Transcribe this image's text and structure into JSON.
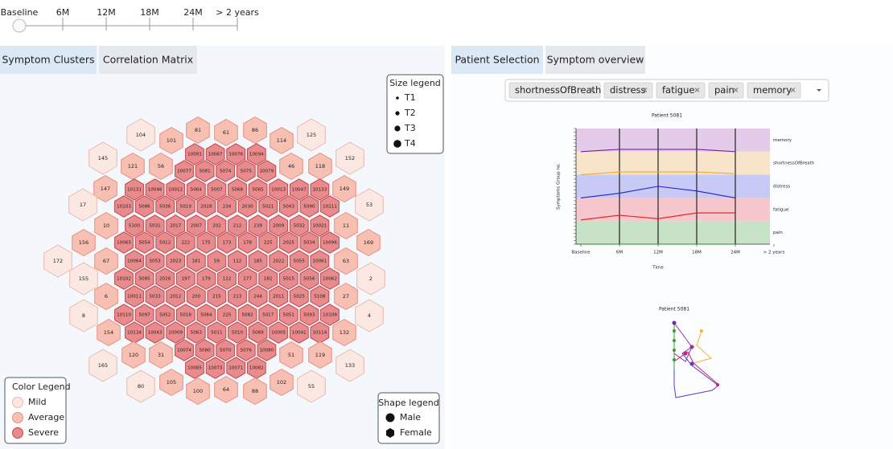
{
  "timeline": {
    "labels": [
      "Baseline",
      "6M",
      "12M",
      "18M",
      "24M",
      "> 2 years"
    ]
  },
  "left_tabs": [
    "Symptom Clusters",
    "Correlation Matrix"
  ],
  "right_tabs": [
    "Patient Selection",
    "Symptom overview"
  ],
  "size_legend": {
    "title": "Size legend",
    "items": [
      "T1",
      "T2",
      "T3",
      "T4"
    ]
  },
  "color_legend": {
    "title": "Color Legend",
    "items": [
      {
        "label": "Mild",
        "color": "#fbe8e2"
      },
      {
        "label": "Average",
        "color": "#f8c0b3"
      },
      {
        "label": "Severe",
        "color": "#e98a8c"
      }
    ]
  },
  "shape_legend": {
    "title": "Shape legend",
    "items": [
      "Male",
      "Female"
    ]
  },
  "hexes": [
    {
      "label": "104",
      "color": "#fbe8e2"
    },
    {
      "label": "101",
      "color": "#f8c0b3"
    },
    {
      "label": "81",
      "color": "#f8c0b3"
    },
    {
      "label": "61",
      "color": "#f8c0b3"
    },
    {
      "label": "86",
      "color": "#f8c0b3"
    },
    {
      "label": "114",
      "color": "#f8c0b3"
    },
    {
      "label": "125",
      "color": "#fbe8e2"
    },
    {
      "label": "10091",
      "color": "#e98a8c"
    },
    {
      "label": "10067",
      "color": "#e98a8c"
    },
    {
      "label": "10076",
      "color": "#e98a8c"
    },
    {
      "label": "10094",
      "color": "#e98a8c"
    },
    {
      "label": "145",
      "color": "#fbe8e2"
    },
    {
      "label": "152",
      "color": "#fbe8e2"
    },
    {
      "label": "121",
      "color": "#f8c0b3"
    },
    {
      "label": "56",
      "color": "#f8c0b3"
    },
    {
      "label": "46",
      "color": "#f8c0b3"
    },
    {
      "label": "118",
      "color": "#f8c0b3"
    },
    {
      "label": "10077",
      "color": "#e98a8c"
    },
    {
      "label": "5081",
      "color": "#e98a8c"
    },
    {
      "label": "5074",
      "color": "#e98a8c"
    },
    {
      "label": "5075",
      "color": "#e98a8c"
    },
    {
      "label": "10079",
      "color": "#e98a8c"
    },
    {
      "label": "147",
      "color": "#f8c0b3"
    },
    {
      "label": "10131",
      "color": "#e98a8c"
    },
    {
      "label": "10046",
      "color": "#e98a8c"
    },
    {
      "label": "10012",
      "color": "#e98a8c"
    },
    {
      "label": "5064",
      "color": "#e98a8c"
    },
    {
      "label": "5007",
      "color": "#e98a8c"
    },
    {
      "label": "5068",
      "color": "#e98a8c"
    },
    {
      "label": "5065",
      "color": "#e98a8c"
    },
    {
      "label": "10013",
      "color": "#e98a8c"
    },
    {
      "label": "10047",
      "color": "#e98a8c"
    },
    {
      "label": "10133",
      "color": "#e98a8c"
    },
    {
      "label": "149",
      "color": "#f8c0b3"
    },
    {
      "label": "17",
      "color": "#fbe8e2"
    },
    {
      "label": "53",
      "color": "#fbe8e2"
    },
    {
      "label": "10103",
      "color": "#e98a8c"
    },
    {
      "label": "5086",
      "color": "#e98a8c"
    },
    {
      "label": "5036",
      "color": "#e98a8c"
    },
    {
      "label": "5019",
      "color": "#e98a8c"
    },
    {
      "label": "2028",
      "color": "#e98a8c"
    },
    {
      "label": "234",
      "color": "#e98a8c"
    },
    {
      "label": "2030",
      "color": "#e98a8c"
    },
    {
      "label": "5021",
      "color": "#e98a8c"
    },
    {
      "label": "5043",
      "color": "#e98a8c"
    },
    {
      "label": "5090",
      "color": "#e98a8c"
    },
    {
      "label": "10111",
      "color": "#e98a8c"
    },
    {
      "label": "10",
      "color": "#f8c0b3"
    },
    {
      "label": "5100",
      "color": "#e98a8c"
    },
    {
      "label": "5031",
      "color": "#e98a8c"
    },
    {
      "label": "2017",
      "color": "#e98a8c"
    },
    {
      "label": "2007",
      "color": "#e98a8c"
    },
    {
      "label": "202",
      "color": "#e98a8c"
    },
    {
      "label": "212",
      "color": "#e98a8c"
    },
    {
      "label": "239",
      "color": "#e98a8c"
    },
    {
      "label": "2009",
      "color": "#e98a8c"
    },
    {
      "label": "5032",
      "color": "#e98a8c"
    },
    {
      "label": "10021",
      "color": "#e98a8c"
    },
    {
      "label": "11",
      "color": "#f8c0b3"
    },
    {
      "label": "156",
      "color": "#f8c0b3"
    },
    {
      "label": "10065",
      "color": "#e98a8c"
    },
    {
      "label": "5054",
      "color": "#e98a8c"
    },
    {
      "label": "5012",
      "color": "#e98a8c"
    },
    {
      "label": "222",
      "color": "#e98a8c"
    },
    {
      "label": "175",
      "color": "#e98a8c"
    },
    {
      "label": "173",
      "color": "#e98a8c"
    },
    {
      "label": "178",
      "color": "#e98a8c"
    },
    {
      "label": "225",
      "color": "#e98a8c"
    },
    {
      "label": "2025",
      "color": "#e98a8c"
    },
    {
      "label": "5034",
      "color": "#e98a8c"
    },
    {
      "label": "10096",
      "color": "#e98a8c"
    },
    {
      "label": "169",
      "color": "#f8c0b3"
    },
    {
      "label": "172",
      "color": "#fbe8e2"
    },
    {
      "label": "67",
      "color": "#f8c0b3"
    },
    {
      "label": "10064",
      "color": "#e98a8c"
    },
    {
      "label": "5053",
      "color": "#e98a8c"
    },
    {
      "label": "2023",
      "color": "#e98a8c"
    },
    {
      "label": "181",
      "color": "#e98a8c"
    },
    {
      "label": "59",
      "color": "#e98a8c"
    },
    {
      "label": "112",
      "color": "#e98a8c"
    },
    {
      "label": "185",
      "color": "#e98a8c"
    },
    {
      "label": "2022",
      "color": "#e98a8c"
    },
    {
      "label": "5055",
      "color": "#e98a8c"
    },
    {
      "label": "10061",
      "color": "#e98a8c"
    },
    {
      "label": "63",
      "color": "#f8c0b3"
    },
    {
      "label": "155",
      "color": "#fbe8e2"
    },
    {
      "label": "10102",
      "color": "#e98a8c"
    },
    {
      "label": "5085",
      "color": "#e98a8c"
    },
    {
      "label": "2026",
      "color": "#e98a8c"
    },
    {
      "label": "197",
      "color": "#e98a8c"
    },
    {
      "label": "179",
      "color": "#e98a8c"
    },
    {
      "label": "122",
      "color": "#e98a8c"
    },
    {
      "label": "177",
      "color": "#e98a8c"
    },
    {
      "label": "182",
      "color": "#e98a8c"
    },
    {
      "label": "5015",
      "color": "#e98a8c"
    },
    {
      "label": "5056",
      "color": "#e98a8c"
    },
    {
      "label": "10062",
      "color": "#e98a8c"
    },
    {
      "label": "2",
      "color": "#fbe8e2"
    },
    {
      "label": "6",
      "color": "#f8c0b3"
    },
    {
      "label": "10011",
      "color": "#e98a8c"
    },
    {
      "label": "5033",
      "color": "#e98a8c"
    },
    {
      "label": "2012",
      "color": "#e98a8c"
    },
    {
      "label": "200",
      "color": "#e98a8c"
    },
    {
      "label": "215",
      "color": "#e98a8c"
    },
    {
      "label": "213",
      "color": "#e98a8c"
    },
    {
      "label": "244",
      "color": "#e98a8c"
    },
    {
      "label": "2011",
      "color": "#e98a8c"
    },
    {
      "label": "5025",
      "color": "#e98a8c"
    },
    {
      "label": "5108",
      "color": "#e98a8c"
    },
    {
      "label": "27",
      "color": "#f8c0b3"
    },
    {
      "label": "8",
      "color": "#fbe8e2"
    },
    {
      "label": "4",
      "color": "#fbe8e2"
    },
    {
      "label": "10110",
      "color": "#e98a8c"
    },
    {
      "label": "5097",
      "color": "#e98a8c"
    },
    {
      "label": "5052",
      "color": "#e98a8c"
    },
    {
      "label": "5018",
      "color": "#e98a8c"
    },
    {
      "label": "5084",
      "color": "#e98a8c"
    },
    {
      "label": "225",
      "color": "#e98a8c"
    },
    {
      "label": "5082",
      "color": "#e98a8c"
    },
    {
      "label": "5017",
      "color": "#e98a8c"
    },
    {
      "label": "5051",
      "color": "#e98a8c"
    },
    {
      "label": "5093",
      "color": "#e98a8c"
    },
    {
      "label": "10108",
      "color": "#e98a8c"
    },
    {
      "label": "154",
      "color": "#f8c0b3"
    },
    {
      "label": "10134",
      "color": "#e98a8c"
    },
    {
      "label": "10043",
      "color": "#e98a8c"
    },
    {
      "label": "10009",
      "color": "#e98a8c"
    },
    {
      "label": "5063",
      "color": "#e98a8c"
    },
    {
      "label": "5011",
      "color": "#e98a8c"
    },
    {
      "label": "5010",
      "color": "#e98a8c"
    },
    {
      "label": "5069",
      "color": "#e98a8c"
    },
    {
      "label": "10005",
      "color": "#e98a8c"
    },
    {
      "label": "10041",
      "color": "#e98a8c"
    },
    {
      "label": "10114",
      "color": "#e98a8c"
    },
    {
      "label": "132",
      "color": "#f8c0b3"
    },
    {
      "label": "10074",
      "color": "#e98a8c"
    },
    {
      "label": "5080",
      "color": "#e98a8c"
    },
    {
      "label": "5070",
      "color": "#e98a8c"
    },
    {
      "label": "5076",
      "color": "#e98a8c"
    },
    {
      "label": "10080",
      "color": "#e98a8c"
    },
    {
      "label": "120",
      "color": "#f8c0b3"
    },
    {
      "label": "31",
      "color": "#f8c0b3"
    },
    {
      "label": "51",
      "color": "#f8c0b3"
    },
    {
      "label": "119",
      "color": "#f8c0b3"
    },
    {
      "label": "165",
      "color": "#fbe8e2"
    },
    {
      "label": "133",
      "color": "#fbe8e2"
    },
    {
      "label": "10085",
      "color": "#e98a8c"
    },
    {
      "label": "10073",
      "color": "#e98a8c"
    },
    {
      "label": "10071",
      "color": "#e98a8c"
    },
    {
      "label": "10082",
      "color": "#e98a8c"
    },
    {
      "label": "80",
      "color": "#fbe8e2"
    },
    {
      "label": "105",
      "color": "#f8c0b3"
    },
    {
      "label": "102",
      "color": "#f8c0b3"
    },
    {
      "label": "55",
      "color": "#fbe8e2"
    },
    {
      "label": "100",
      "color": "#f8c0b3"
    },
    {
      "label": "64",
      "color": "#f8c0b3"
    },
    {
      "label": "88",
      "color": "#f8c0b3"
    }
  ],
  "selector": {
    "chips": [
      "shortnessOfBreath",
      "distress",
      "fatigue",
      "pain",
      "memory"
    ]
  },
  "chart_data": {
    "type": "line",
    "title": "Patient 5081",
    "y_label": "Symptoms Group no.",
    "x_label": "Time",
    "categories": [
      "Baseline",
      "6M",
      "12M",
      "18M",
      "24M",
      "> 2 years"
    ],
    "ylim": [
      0,
      5
    ],
    "series": [
      {
        "name": "memory",
        "color": "#7b1fa2",
        "band_color": "#e3cbe9",
        "values": [
          4.0,
          4.1,
          4.1,
          4.1,
          4.0,
          null
        ]
      },
      {
        "name": "shortnessOfBreath",
        "color": "#f0a830",
        "band_color": "#f8e4c9",
        "values": [
          3.0,
          3.12,
          3.12,
          3.12,
          3.05,
          null
        ]
      },
      {
        "name": "distress",
        "color": "#2020c8",
        "band_color": "#c8caf6",
        "values": [
          2.0,
          2.2,
          2.5,
          2.3,
          2.0,
          null
        ]
      },
      {
        "name": "fatigue",
        "color": "#e01a1a",
        "band_color": "#f6c7cc",
        "values": [
          1.05,
          1.25,
          1.1,
          1.35,
          1.35,
          null
        ]
      },
      {
        "name": "pain",
        "color": "#2a8a2a",
        "band_color": "#c7e2c7",
        "values": [
          0,
          0,
          0,
          0,
          0,
          null
        ]
      }
    ]
  },
  "network": {
    "title": "Patient 5081"
  }
}
